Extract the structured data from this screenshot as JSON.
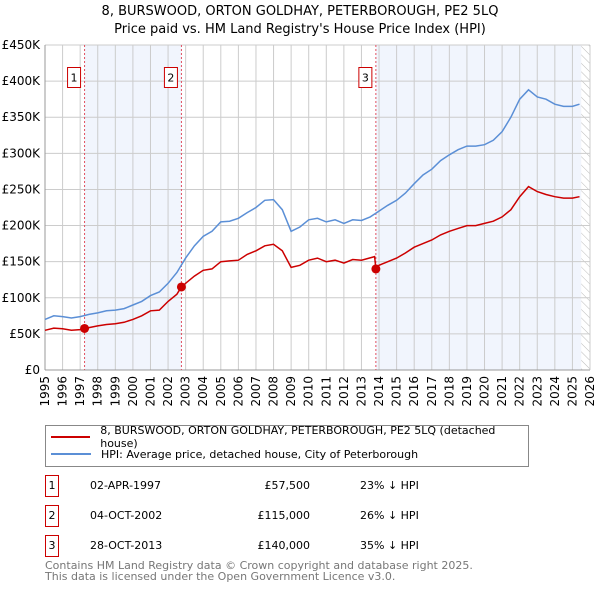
{
  "title_line1": "8, BURSWOOD, ORTON GOLDHAY, PETERBOROUGH, PE2 5LQ",
  "title_line2": "Price paid vs. HM Land Registry's House Price Index (HPI)",
  "chart_data": {
    "type": "line",
    "xlim": [
      1995,
      2026
    ],
    "ylim": [
      0,
      450000
    ],
    "y_ticks": [
      0,
      50000,
      100000,
      150000,
      200000,
      250000,
      300000,
      350000,
      400000,
      450000
    ],
    "y_tick_labels": [
      "£0",
      "£50K",
      "£100K",
      "£150K",
      "£200K",
      "£250K",
      "£300K",
      "£350K",
      "£400K",
      "£450K"
    ],
    "x_tick_labels": [
      "1995",
      "1996",
      "1997",
      "1998",
      "1999",
      "2000",
      "2001",
      "2002",
      "2003",
      "2004",
      "2005",
      "2006",
      "2007",
      "2008",
      "2009",
      "2010",
      "2011",
      "2012",
      "2013",
      "2014",
      "2015",
      "2016",
      "2017",
      "2018",
      "2019",
      "2020",
      "2021",
      "2022",
      "2023",
      "2024",
      "2025",
      "2026"
    ],
    "grid": true,
    "series": [
      {
        "name": "8, BURSWOOD, ORTON GOLDHAY, PETERBOROUGH, PE2 5LQ (detached house)",
        "color": "#cc0000",
        "x": [
          1995,
          1995.5,
          1996,
          1996.5,
          1997,
          1997.25,
          1998,
          1998.5,
          1999,
          1999.5,
          2000,
          2000.5,
          2001,
          2001.5,
          2002,
          2002.5,
          2002.76,
          2003,
          2003.5,
          2004,
          2004.5,
          2005,
          2005.5,
          2006,
          2006.5,
          2007,
          2007.5,
          2008,
          2008.5,
          2009,
          2009.5,
          2010,
          2010.5,
          2011,
          2011.5,
          2012,
          2012.5,
          2013,
          2013.75,
          2013.82,
          2014,
          2014.5,
          2015,
          2015.5,
          2016,
          2016.5,
          2017,
          2017.5,
          2018,
          2018.5,
          2019,
          2019.5,
          2020,
          2020.5,
          2021,
          2021.5,
          2022,
          2022.5,
          2023,
          2023.5,
          2024,
          2024.5,
          2025,
          2025.4
        ],
        "y": [
          55000,
          58000,
          57000,
          55000,
          56000,
          57500,
          61000,
          63000,
          64000,
          66000,
          70000,
          75000,
          82000,
          83000,
          95000,
          105000,
          115000,
          120000,
          130000,
          138000,
          140000,
          150000,
          151000,
          152000,
          160000,
          165000,
          172000,
          174000,
          165000,
          142000,
          145000,
          152000,
          155000,
          150000,
          152000,
          148000,
          153000,
          152000,
          157000,
          140000,
          145000,
          150000,
          155000,
          162000,
          170000,
          175000,
          180000,
          187000,
          192000,
          196000,
          200000,
          200000,
          203000,
          206000,
          212000,
          222000,
          240000,
          254000,
          247000,
          243000,
          240000,
          238000,
          238000,
          240000
        ]
      },
      {
        "name": "HPI: Average price, detached house, City of Peterborough",
        "color": "#5b8fd6",
        "x": [
          1995,
          1995.5,
          1996,
          1996.5,
          1997,
          1997.5,
          1998,
          1998.5,
          1999,
          1999.5,
          2000,
          2000.5,
          2001,
          2001.5,
          2002,
          2002.5,
          2003,
          2003.5,
          2004,
          2004.5,
          2005,
          2005.5,
          2006,
          2006.5,
          2007,
          2007.5,
          2008,
          2008.5,
          2009,
          2009.5,
          2010,
          2010.5,
          2011,
          2011.5,
          2012,
          2012.5,
          2013,
          2013.5,
          2014,
          2014.5,
          2015,
          2015.5,
          2016,
          2016.5,
          2017,
          2017.5,
          2018,
          2018.5,
          2019,
          2019.5,
          2020,
          2020.5,
          2021,
          2021.5,
          2022,
          2022.5,
          2023,
          2023.5,
          2024,
          2024.5,
          2025,
          2025.4
        ],
        "y": [
          70000,
          75000,
          74000,
          72000,
          74000,
          77000,
          79000,
          82000,
          83000,
          85000,
          90000,
          95000,
          103000,
          108000,
          120000,
          135000,
          155000,
          172000,
          185000,
          192000,
          205000,
          206000,
          210000,
          218000,
          225000,
          235000,
          236000,
          222000,
          192000,
          198000,
          208000,
          210000,
          205000,
          208000,
          203000,
          208000,
          207000,
          212000,
          220000,
          228000,
          235000,
          245000,
          258000,
          270000,
          278000,
          290000,
          298000,
          305000,
          310000,
          310000,
          312000,
          318000,
          330000,
          350000,
          375000,
          388000,
          378000,
          375000,
          368000,
          365000,
          365000,
          368000
        ]
      }
    ],
    "sales": [
      {
        "num": "1",
        "x": 1997.25,
        "value": 57500
      },
      {
        "num": "2",
        "x": 2002.76,
        "value": 115000
      },
      {
        "num": "3",
        "x": 2013.82,
        "value": 140000
      }
    ],
    "shaded_ranges": [
      [
        1997.25,
        2002.76
      ],
      [
        2013.82,
        2025.5
      ]
    ],
    "forecast_hatch_from": 2025.5
  },
  "legend": [
    {
      "label": "8, BURSWOOD, ORTON GOLDHAY, PETERBOROUGH, PE2 5LQ (detached house)",
      "color": "#cc0000"
    },
    {
      "label": "HPI: Average price, detached house, City of Peterborough",
      "color": "#5b8fd6"
    }
  ],
  "transactions": [
    {
      "num": "1",
      "date": "02-APR-1997",
      "price": "£57,500",
      "diff": "23% ↓ HPI"
    },
    {
      "num": "2",
      "date": "04-OCT-2002",
      "price": "£115,000",
      "diff": "26% ↓ HPI"
    },
    {
      "num": "3",
      "date": "28-OCT-2013",
      "price": "£140,000",
      "diff": "35% ↓ HPI"
    }
  ],
  "footer_line1": "Contains HM Land Registry data © Crown copyright and database right 2025.",
  "footer_line2": "This data is licensed under the Open Government Licence v3.0."
}
